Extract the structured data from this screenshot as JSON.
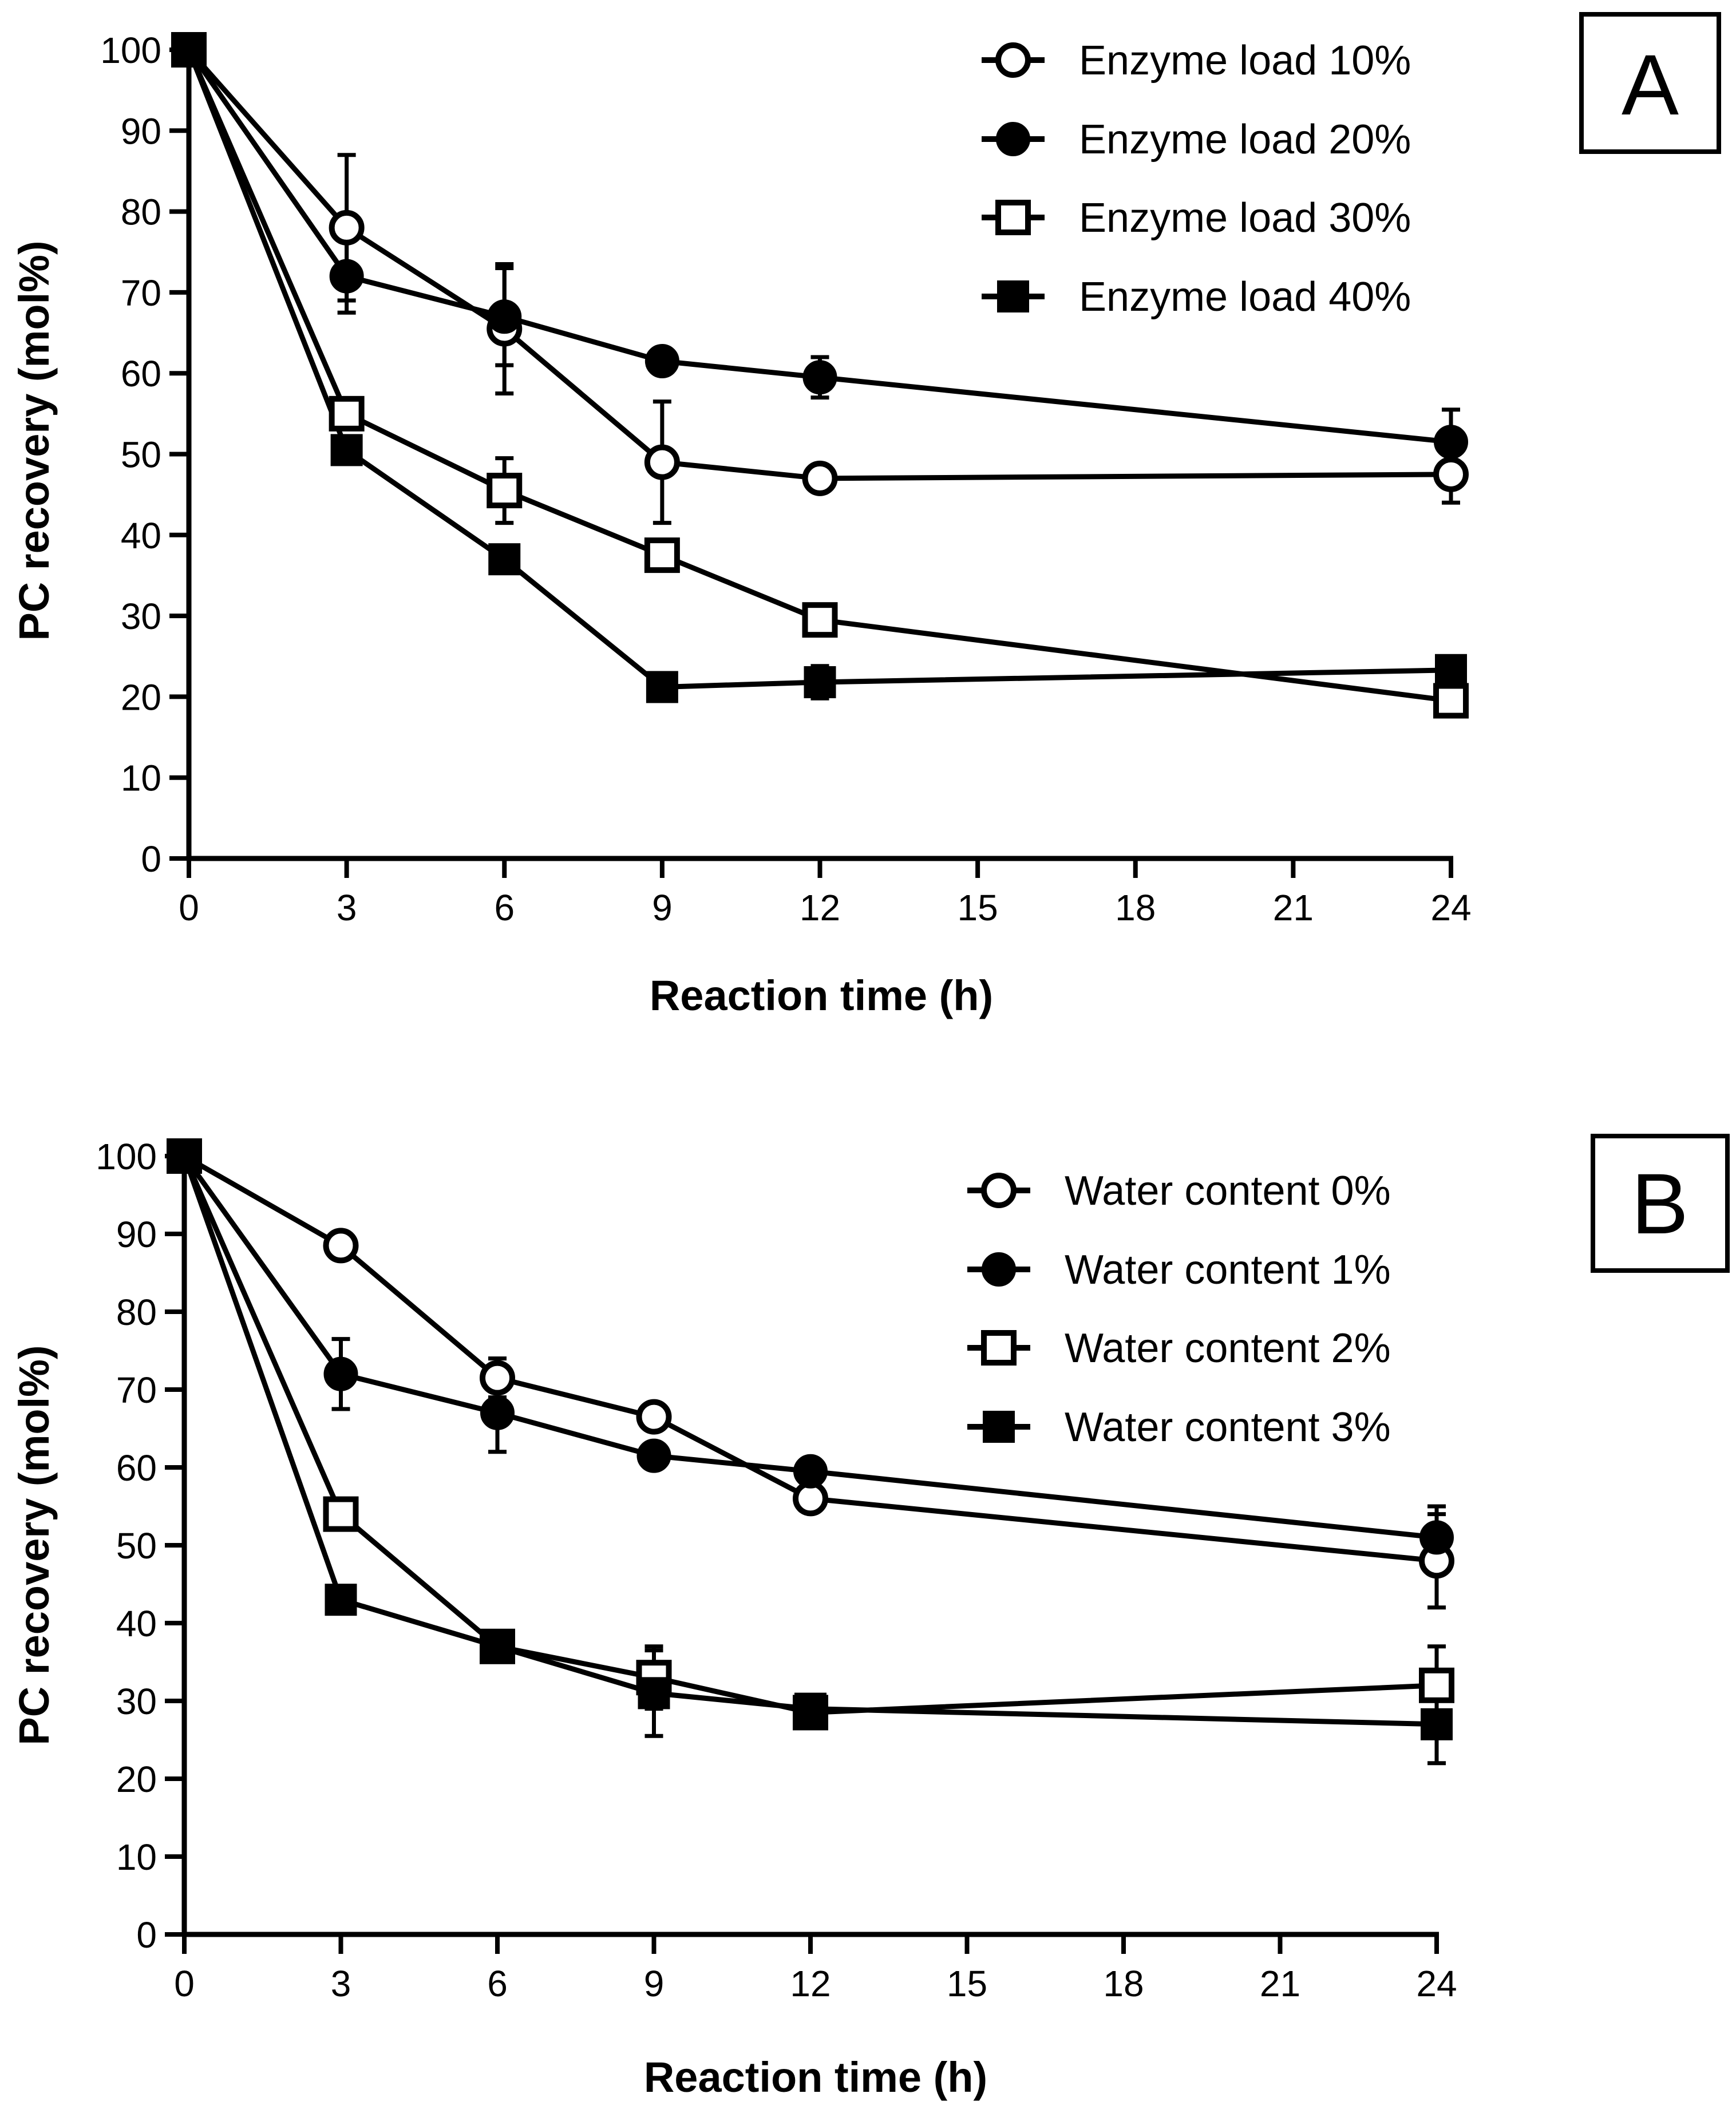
{
  "chart_data": [
    {
      "type": "line",
      "panel_label": "A",
      "xlabel": "Reaction time (h)",
      "ylabel": "PC recovery (mol%)",
      "x_ticks": [
        "0",
        "3",
        "6",
        "9",
        "12",
        "15",
        "18",
        "21",
        "24"
      ],
      "y_ticks": [
        "0",
        "10",
        "20",
        "30",
        "40",
        "50",
        "60",
        "70",
        "80",
        "90",
        "100"
      ],
      "xlim": [
        0,
        24
      ],
      "ylim": [
        0,
        100
      ],
      "legend_position": "top-right",
      "series": [
        {
          "name": "Enzyme load 10%",
          "marker": "circle",
          "filled": false,
          "x": [
            0,
            3,
            6,
            9,
            12,
            24
          ],
          "y": [
            100,
            78,
            65.5,
            49,
            47,
            47.5
          ],
          "err": [
            0,
            9,
            8,
            7.5,
            1,
            3.5
          ]
        },
        {
          "name": "Enzyme load 20%",
          "marker": "circle",
          "filled": true,
          "x": [
            0,
            3,
            6,
            9,
            12,
            24
          ],
          "y": [
            100,
            72,
            67,
            61.5,
            59.5,
            51.5
          ],
          "err": [
            0,
            4.5,
            6,
            1,
            2.5,
            4
          ]
        },
        {
          "name": "Enzyme load 30%",
          "marker": "square",
          "filled": false,
          "x": [
            0,
            3,
            6,
            9,
            12,
            24
          ],
          "y": [
            100,
            55,
            45.5,
            37.5,
            29.5,
            19.5
          ],
          "err": [
            0,
            1,
            4,
            1.5,
            1.5,
            1
          ]
        },
        {
          "name": "Enzyme load 40%",
          "marker": "square",
          "filled": true,
          "x": [
            0,
            3,
            6,
            9,
            12,
            24
          ],
          "y": [
            100,
            50.5,
            37,
            21.2,
            21.8,
            23.3
          ],
          "err": [
            0,
            1,
            1,
            1,
            2,
            1
          ]
        }
      ]
    },
    {
      "type": "line",
      "panel_label": "B",
      "xlabel": "Reaction time (h)",
      "ylabel": "PC recovery (mol%)",
      "x_ticks": [
        "0",
        "3",
        "6",
        "9",
        "12",
        "15",
        "18",
        "21",
        "24"
      ],
      "y_ticks": [
        "0",
        "10",
        "20",
        "30",
        "40",
        "50",
        "60",
        "70",
        "80",
        "90",
        "100"
      ],
      "xlim": [
        0,
        24
      ],
      "ylim": [
        0,
        100
      ],
      "legend_position": "top-right",
      "series": [
        {
          "name": "Water content 0%",
          "marker": "circle",
          "filled": false,
          "x": [
            0,
            3,
            6,
            9,
            12,
            24
          ],
          "y": [
            100,
            88.5,
            71.5,
            66.5,
            56,
            48
          ],
          "err": [
            0,
            1,
            2.5,
            1,
            1,
            6
          ]
        },
        {
          "name": "Water content 1%",
          "marker": "circle",
          "filled": true,
          "x": [
            0,
            3,
            6,
            9,
            12,
            24
          ],
          "y": [
            100,
            72,
            67,
            61.5,
            59.5,
            51
          ],
          "err": [
            0,
            4.5,
            5,
            1,
            1.5,
            4
          ]
        },
        {
          "name": "Water content 2%",
          "marker": "square",
          "filled": false,
          "x": [
            0,
            3,
            6,
            9,
            12,
            24
          ],
          "y": [
            100,
            54,
            37,
            33,
            28.5,
            32
          ],
          "err": [
            0,
            1,
            1,
            4,
            1,
            5
          ]
        },
        {
          "name": "Water content 3%",
          "marker": "square",
          "filled": true,
          "x": [
            0,
            3,
            6,
            9,
            12,
            24
          ],
          "y": [
            100,
            43,
            37,
            31,
            29,
            27
          ],
          "err": [
            0,
            1,
            1,
            5.5,
            1,
            5
          ]
        }
      ]
    }
  ]
}
